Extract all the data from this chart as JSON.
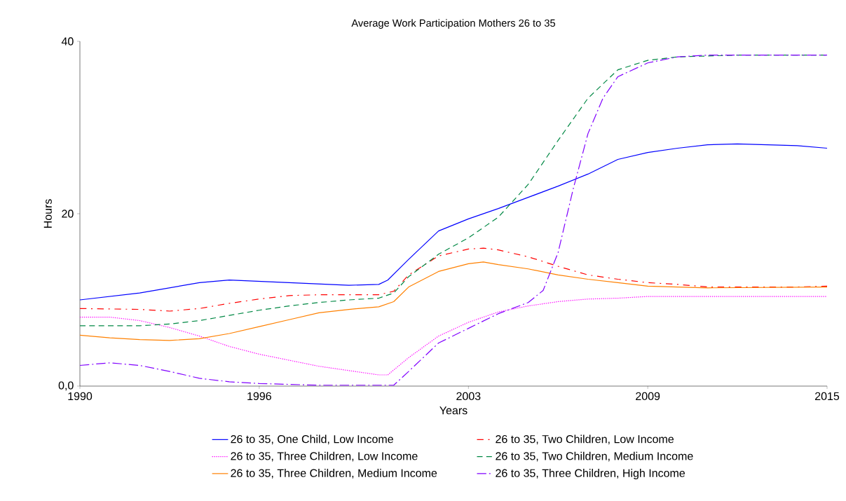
{
  "chart_data": {
    "type": "line",
    "title": "Average Work Participation Mothers 26 to 35",
    "xlabel": "Years",
    "ylabel": "Hours",
    "xlim": [
      1990,
      2015
    ],
    "ylim": [
      0,
      40
    ],
    "xticks": [
      1990,
      1996,
      2003,
      2009,
      2015
    ],
    "yticks": [
      {
        "value": 0,
        "label": "0,0"
      },
      20,
      40
    ],
    "grid": false,
    "legend": "bottom",
    "marker": "none",
    "series": [
      {
        "name": "26 to 35, One Child, Low Income",
        "color": "#0000ff",
        "line_style": "solid",
        "x": [
          1990,
          1992,
          1994,
          1995,
          1997,
          1999,
          2000,
          2000.3,
          2001,
          2002,
          2003,
          2004,
          2005,
          2006,
          2007,
          2008,
          2009,
          2010,
          2011,
          2012,
          2013,
          2014,
          2015
        ],
        "values": [
          10.0,
          10.8,
          12.0,
          12.3,
          12.0,
          11.7,
          11.8,
          12.3,
          14.7,
          18.0,
          19.4,
          20.6,
          21.9,
          23.2,
          24.6,
          26.3,
          27.1,
          27.6,
          28.0,
          28.1,
          28.0,
          27.9,
          27.6
        ]
      },
      {
        "name": "26 to 35, Two Children, Low Income",
        "color": "#ff0000",
        "line_style": "dashdot",
        "x": [
          1990,
          1992,
          1993,
          1994,
          1995,
          1996,
          1997,
          1998,
          1999,
          2000,
          2000.5,
          2001,
          2002,
          2003,
          2003.5,
          2004,
          2005,
          2006,
          2007,
          2008,
          2009,
          2010,
          2011,
          2012,
          2013,
          2014,
          2015
        ],
        "values": [
          9.0,
          8.9,
          8.7,
          9.0,
          9.6,
          10.1,
          10.5,
          10.6,
          10.6,
          10.6,
          11.0,
          12.9,
          15.1,
          15.9,
          16.0,
          15.8,
          15.0,
          13.9,
          12.9,
          12.4,
          12.0,
          11.8,
          11.5,
          11.5,
          11.5,
          11.5,
          11.6
        ]
      },
      {
        "name": "26 to 35, Three Children, Low Income",
        "color": "#ff00ff",
        "line_style": "dotted",
        "x": [
          1990,
          1991,
          1992,
          1993,
          1994,
          1995,
          1996,
          1997,
          1998,
          1999,
          2000,
          2000.3,
          2001,
          2002,
          2003,
          2004,
          2005,
          2006,
          2007,
          2008,
          2009,
          2012,
          2015
        ],
        "values": [
          8.0,
          8.0,
          7.6,
          6.8,
          5.8,
          4.6,
          3.7,
          3.0,
          2.3,
          1.8,
          1.3,
          1.3,
          3.3,
          5.8,
          7.4,
          8.6,
          9.3,
          9.8,
          10.1,
          10.2,
          10.4,
          10.4,
          10.4
        ]
      },
      {
        "name": "26 to 35, Two Children, Medium Income",
        "color": "#008844",
        "line_style": "dashed",
        "x": [
          1990,
          1992,
          1993,
          1994,
          1995,
          1996,
          1997,
          1998,
          1999,
          2000,
          2000.5,
          2001,
          2002,
          2003,
          2004,
          2005,
          2006,
          2007,
          2008,
          2009,
          2010,
          2011,
          2012,
          2015
        ],
        "values": [
          7.0,
          7.0,
          7.2,
          7.6,
          8.2,
          8.8,
          9.3,
          9.7,
          10.0,
          10.2,
          10.8,
          12.7,
          15.3,
          17.2,
          19.6,
          23.4,
          28.5,
          33.4,
          36.7,
          37.8,
          38.2,
          38.3,
          38.4,
          38.4
        ]
      },
      {
        "name": "26 to 35, Three Children, Medium Income",
        "color": "#ff8000",
        "line_style": "solid",
        "x": [
          1990,
          1991,
          1992,
          1993,
          1994,
          1995,
          1996,
          1997,
          1998,
          1999,
          2000,
          2000.5,
          2001,
          2002,
          2003,
          2003.5,
          2004,
          2005,
          2006,
          2007,
          2008,
          2009,
          2010,
          2011,
          2015
        ],
        "values": [
          5.9,
          5.6,
          5.4,
          5.3,
          5.5,
          6.1,
          6.9,
          7.7,
          8.5,
          8.9,
          9.2,
          9.8,
          11.5,
          13.3,
          14.2,
          14.4,
          14.1,
          13.6,
          12.9,
          12.4,
          12.0,
          11.6,
          11.5,
          11.4,
          11.5
        ]
      },
      {
        "name": "26 to 35, Three Children, High Income",
        "color": "#8000ff",
        "line_style": "longdashdot",
        "x": [
          1990,
          1991,
          1992,
          1993,
          1994,
          1995,
          1996,
          1997,
          1998,
          1999,
          2000,
          2000.5,
          2001,
          2002,
          2003,
          2004,
          2005,
          2005.5,
          2006,
          2006.5,
          2007,
          2007.5,
          2008,
          2009,
          2010,
          2011,
          2015
        ],
        "values": [
          2.4,
          2.7,
          2.4,
          1.7,
          0.9,
          0.5,
          0.3,
          0.2,
          0.1,
          0.1,
          0.1,
          0.1,
          1.7,
          5.0,
          6.7,
          8.4,
          9.7,
          11.1,
          15.5,
          22.8,
          29.3,
          33.4,
          35.9,
          37.5,
          38.2,
          38.4,
          38.4
        ]
      }
    ]
  }
}
